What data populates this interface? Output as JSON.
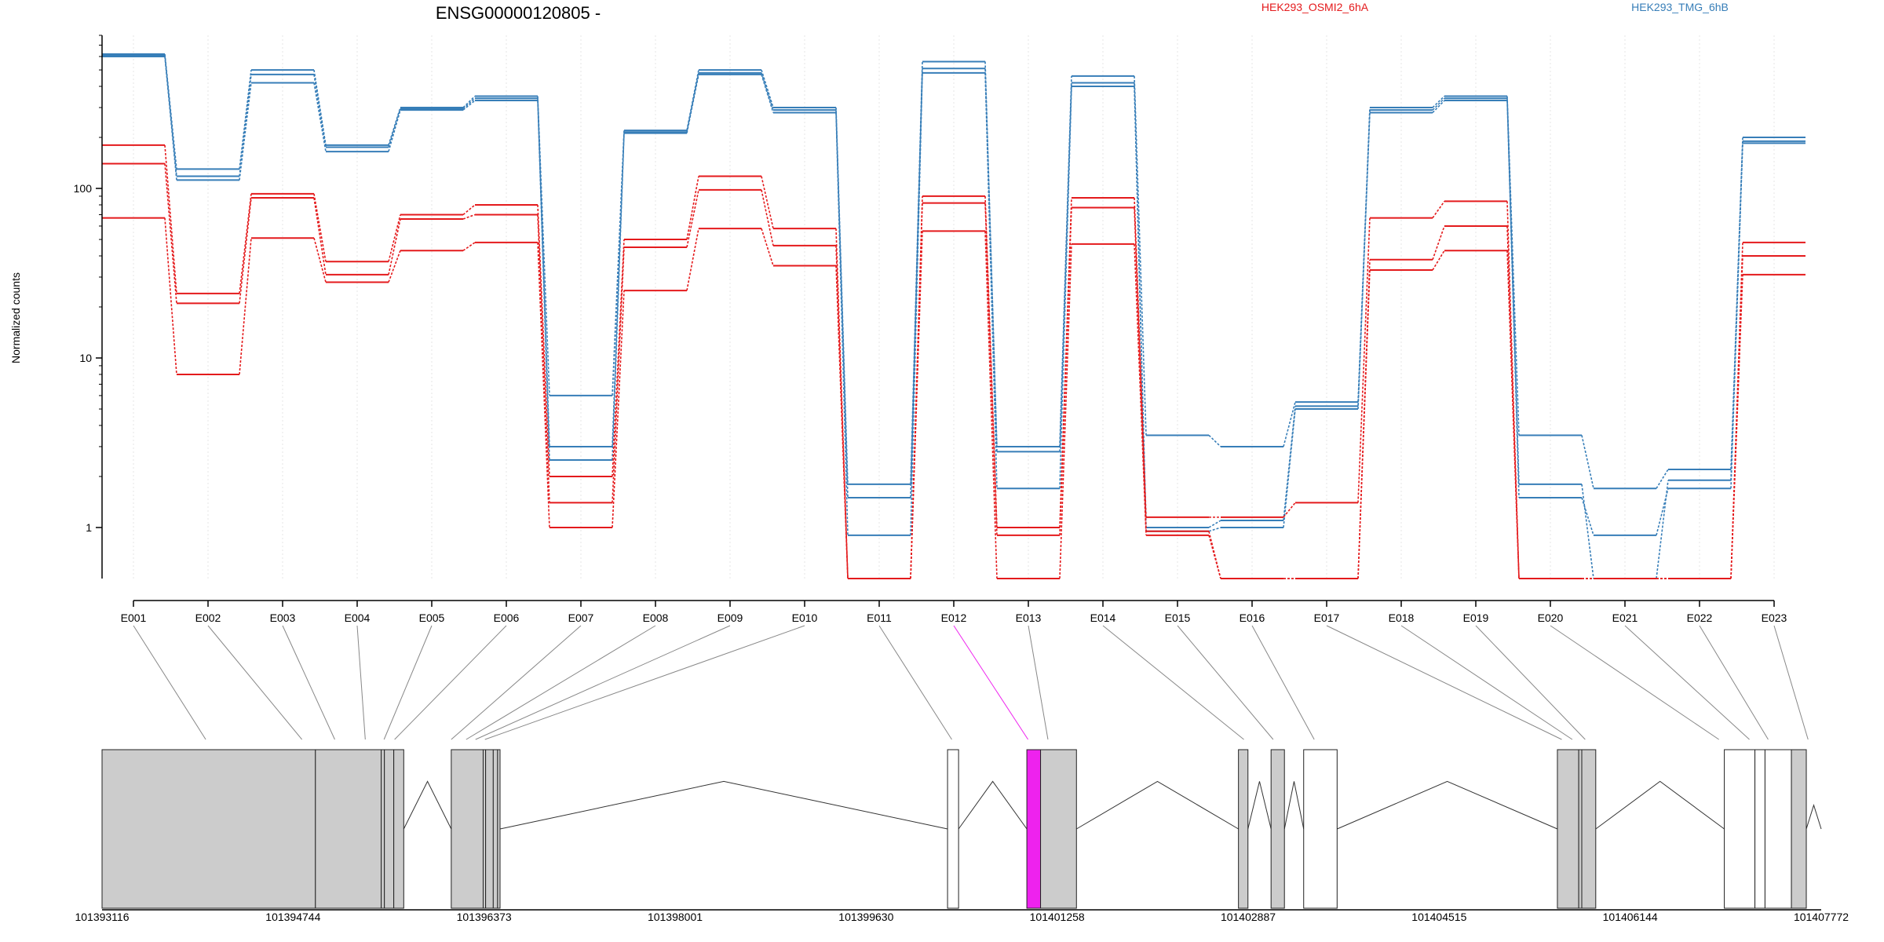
{
  "chart_data": {
    "type": "line",
    "title": "ENSG00000120805 -",
    "ylabel": "Normalized counts",
    "xlabel": "",
    "yscale": "log",
    "ylim": [
      0.5,
      800
    ],
    "yticks": [
      "1",
      "10",
      "100"
    ],
    "grid": "vertical-dotted",
    "legend_placement": "top",
    "colors": {
      "red": "#e41a1c",
      "blue": "#377eb8",
      "highlight": "#ee22ee",
      "exon": "#cccccc"
    },
    "categories": [
      "E001",
      "E002",
      "E003",
      "E004",
      "E005",
      "E006",
      "E007",
      "E008",
      "E009",
      "E010",
      "E011",
      "E012",
      "E013",
      "E014",
      "E015",
      "E016",
      "E017",
      "E018",
      "E019",
      "E020",
      "E021",
      "E022",
      "E023"
    ],
    "legend": [
      {
        "name": "HEK293_OSMI2_6hA",
        "color": "#e41a1c"
      },
      {
        "name": "HEK293_TMG_6hB",
        "color": "#377eb8"
      }
    ],
    "series": [
      {
        "color": "#377eb8",
        "values": [
          620,
          130,
          500,
          180,
          300,
          350,
          6,
          220,
          500,
          300,
          1.8,
          560,
          3,
          460,
          3.5,
          3,
          5.5,
          300,
          350,
          3.5,
          1.7,
          2.2,
          200
        ]
      },
      {
        "color": "#377eb8",
        "values": [
          610,
          118,
          470,
          175,
          295,
          340,
          3,
          215,
          480,
          290,
          1.5,
          510,
          2.8,
          420,
          1,
          1.1,
          5.2,
          290,
          340,
          1.8,
          0.5,
          1.9,
          190
        ]
      },
      {
        "color": "#377eb8",
        "values": [
          600,
          112,
          420,
          165,
          290,
          330,
          2.5,
          212,
          470,
          280,
          0.9,
          480,
          1.7,
          400,
          0.95,
          1.0,
          5.0,
          280,
          330,
          1.5,
          0.9,
          1.7,
          185
        ]
      },
      {
        "color": "#e41a1c",
        "values": [
          180,
          24,
          93,
          37,
          70,
          80,
          2,
          50,
          118,
          58,
          0.5,
          90,
          1,
          88,
          1.15,
          1.15,
          1.4,
          67,
          84,
          0.5,
          0.5,
          0.5,
          48
        ]
      },
      {
        "color": "#e41a1c",
        "values": [
          140,
          21,
          88,
          31,
          66,
          70,
          1.4,
          45,
          98,
          46,
          0.5,
          82,
          0.9,
          77,
          0.95,
          0.5,
          0.5,
          38,
          60,
          0.5,
          0.5,
          0.5,
          40
        ]
      },
      {
        "color": "#e41a1c",
        "values": [
          67,
          8,
          51,
          28,
          43,
          48,
          1,
          25,
          58,
          35,
          0.5,
          56,
          0.5,
          47,
          0.9,
          0.5,
          0.5,
          33,
          43,
          0.5,
          0.5,
          0.5,
          31
        ]
      }
    ],
    "genomic_axis": {
      "ticks": [
        "101393116",
        "101394744",
        "101396373",
        "101398001",
        "101399630",
        "101401258",
        "101402887",
        "101404515",
        "101406144",
        "101407772"
      ],
      "range": [
        101393116,
        101407772
      ]
    },
    "exon_spans": [
      {
        "label": "E001",
        "start": 101393116,
        "end": 101394935,
        "fill": "#cccccc"
      },
      {
        "label": "E002",
        "start": 101394935,
        "end": 101395496,
        "fill": "#cccccc"
      },
      {
        "label": "E003",
        "start": 101395496,
        "end": 101395523,
        "fill": "#cccccc"
      },
      {
        "label": "E004",
        "start": 101395523,
        "end": 101395603,
        "fill": "#cccccc"
      },
      {
        "label": "E005",
        "start": 101395603,
        "end": 101395688,
        "fill": "#cccccc"
      },
      {
        "label": "E006",
        "start": 101396093,
        "end": 101396365,
        "fill": "#cccccc"
      },
      {
        "label": "E007",
        "start": 101396365,
        "end": 101396386,
        "fill": "#cccccc"
      },
      {
        "label": "E008",
        "start": 101396386,
        "end": 101396451,
        "fill": "#cccccc"
      },
      {
        "label": "E009",
        "start": 101396451,
        "end": 101396488,
        "fill": "#cccccc"
      },
      {
        "label": "E010",
        "start": 101396488,
        "end": 101396509,
        "fill": "#cccccc"
      },
      {
        "label": "E011",
        "start": 101400324,
        "end": 101400418,
        "fill": "#ffffff"
      },
      {
        "label": "E012",
        "start": 101401000,
        "end": 101401117,
        "fill": "#ee22ee"
      },
      {
        "label": "E013",
        "start": 101401117,
        "end": 101401423,
        "fill": "#cccccc"
      },
      {
        "label": "E014",
        "start": 101402804,
        "end": 101402885,
        "fill": "#cccccc"
      },
      {
        "label": "E015",
        "start": 101403082,
        "end": 101403196,
        "fill": "#cccccc"
      },
      {
        "label": "E016",
        "start": 101403360,
        "end": 101403645,
        "fill": "#ffffff"
      },
      {
        "label": "E017",
        "start": 101405523,
        "end": 101405705,
        "fill": "#cccccc"
      },
      {
        "label": "E018",
        "start": 101405705,
        "end": 101405731,
        "fill": "#cccccc"
      },
      {
        "label": "E019",
        "start": 101405731,
        "end": 101405850,
        "fill": "#cccccc"
      },
      {
        "label": "E020",
        "start": 101406946,
        "end": 101407207,
        "fill": "#ffffff"
      },
      {
        "label": "E021",
        "start": 101407207,
        "end": 101407293,
        "fill": "#ffffff"
      },
      {
        "label": "E022",
        "start": 101407293,
        "end": 101407518,
        "fill": "#ffffff"
      },
      {
        "label": "E023",
        "start": 101407518,
        "end": 101407645,
        "fill": "#cccccc"
      }
    ],
    "intron_peaks": [
      {
        "start": 101395688,
        "end": 101396093,
        "height": 0.6
      },
      {
        "start": 101396509,
        "end": 101400324,
        "height": 0.6
      },
      {
        "start": 101400418,
        "end": 101401000,
        "height": 0.6
      },
      {
        "start": 101401423,
        "end": 101402804,
        "height": 0.6
      },
      {
        "start": 101402885,
        "end": 101403082,
        "height": 0.6
      },
      {
        "start": 101403196,
        "end": 101403360,
        "height": 0.6
      },
      {
        "start": 101403645,
        "end": 101405523,
        "height": 0.6
      },
      {
        "start": 101405850,
        "end": 101406946,
        "height": 0.6
      },
      {
        "start": 101407645,
        "end": 101407772,
        "height": 0.3
      }
    ],
    "connector_targets": [
      101394000,
      101394820,
      101395100,
      101395360,
      101395520,
      101395610,
      101396093,
      101396220,
      101396300,
      101396380,
      101400360,
      101401010,
      101401180,
      101402850,
      101403100,
      101403450,
      101405560,
      101405650,
      101405760,
      101406900,
      101407160,
      101407320,
      101407660
    ]
  }
}
